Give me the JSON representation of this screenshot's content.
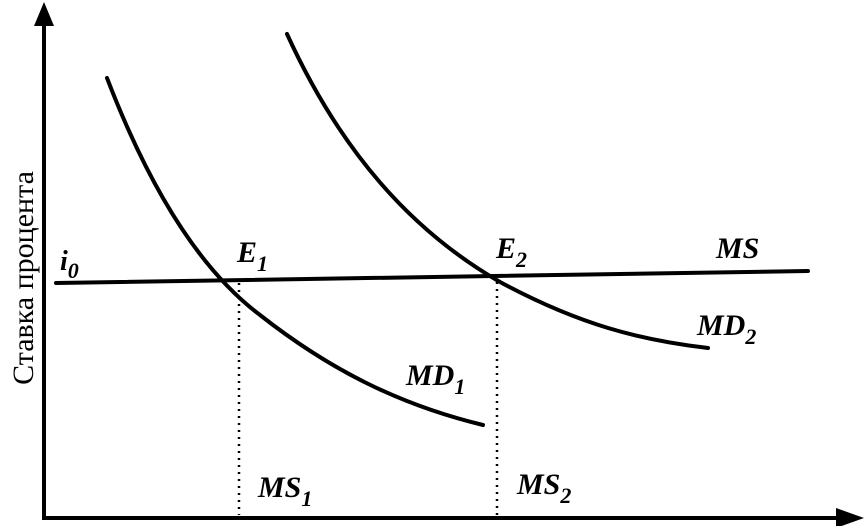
{
  "axis": {
    "y_title": "Ставка процента"
  },
  "labels": {
    "i0": {
      "main": "i",
      "sub": "0"
    },
    "e1": {
      "main": "E",
      "sub": "1"
    },
    "e2": {
      "main": "E",
      "sub": "2"
    },
    "ms": {
      "main": "MS",
      "sub": ""
    },
    "md1": {
      "main": "MD",
      "sub": "1"
    },
    "md2": {
      "main": "MD",
      "sub": "2"
    },
    "ms1": {
      "main": "MS",
      "sub": "1"
    },
    "ms2": {
      "main": "MS",
      "sub": "2"
    }
  }
}
